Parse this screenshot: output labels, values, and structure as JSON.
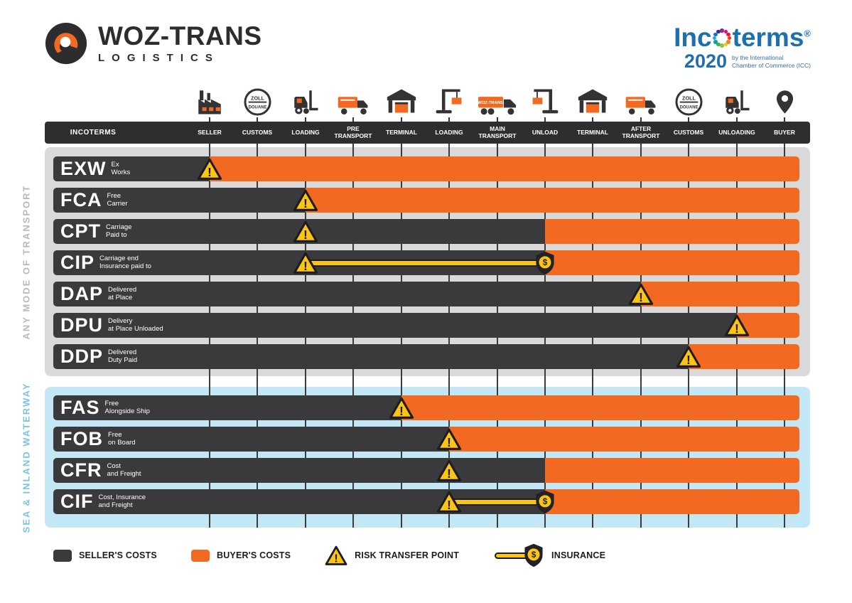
{
  "brand": {
    "name": "WOZ-TRANS",
    "subtitle": "LOGISTICS"
  },
  "incoterms_logo": {
    "title_prefix": "Inc",
    "title_suffix": "terms",
    "registered": "®",
    "year": "2020",
    "caption_line1": "by the International",
    "caption_line2": "Chamber of Commerce (ICC)"
  },
  "icon_texts": {
    "customs_line1": "ZOLL",
    "customs_line2": "DOUANE",
    "truck_brand": "WOZ-TRANS"
  },
  "table": {
    "first_column_header": "INCOTERMS",
    "stages": [
      {
        "label": "SELLER",
        "icon": "factory-icon"
      },
      {
        "label": "CUSTOMS",
        "icon": "customs-stamp-icon"
      },
      {
        "label": "LOADING",
        "icon": "forklift-icon"
      },
      {
        "label": "PRE TRANSPORT",
        "icon": "box-truck-icon"
      },
      {
        "label": "TERMINAL",
        "icon": "warehouse-icon"
      },
      {
        "label": "LOADING",
        "icon": "crane-icon"
      },
      {
        "label": "MAIN TRANSPORT",
        "icon": "cargo-truck-icon"
      },
      {
        "label": "UNLOAD",
        "icon": "crane-icon",
        "mirror": true
      },
      {
        "label": "TERMINAL",
        "icon": "warehouse-icon"
      },
      {
        "label": "AFTER TRANSPORT",
        "icon": "box-truck-icon"
      },
      {
        "label": "CUSTOMS",
        "icon": "customs-stamp-icon"
      },
      {
        "label": "UNLOADING",
        "icon": "forklift-icon"
      },
      {
        "label": "BUYER",
        "icon": "location-pin-icon"
      }
    ]
  },
  "sections": [
    {
      "name": "ANY MODE OF TRANSPORT",
      "rows": [
        {
          "code": "EXW",
          "description": [
            "Ex",
            "Works"
          ],
          "seller_cost_until": "SELLER",
          "seller_until_index": 0,
          "risk_at": "SELLER",
          "risk_index": 0
        },
        {
          "code": "FCA",
          "description": [
            "Free",
            "Carrier"
          ],
          "seller_cost_until": "LOADING",
          "seller_until_index": 2,
          "risk_at": "LOADING",
          "risk_index": 2
        },
        {
          "code": "CPT",
          "description": [
            "Carriage",
            "Paid to"
          ],
          "seller_cost_until": "UNLOAD",
          "seller_until_index": 7,
          "risk_at": "LOADING",
          "risk_index": 2
        },
        {
          "code": "CIP",
          "description": [
            "Carriage end",
            "Insurance paid to"
          ],
          "seller_cost_until": "UNLOAD",
          "seller_until_index": 7,
          "risk_at": "LOADING",
          "risk_index": 2,
          "insurance_from_index": 2,
          "insurance_to_index": 7
        },
        {
          "code": "DAP",
          "description": [
            "Delivered",
            "at Place"
          ],
          "seller_cost_until": "AFTER TRANSPORT",
          "seller_until_index": 9,
          "risk_at": "AFTER TRANSPORT",
          "risk_index": 9
        },
        {
          "code": "DPU",
          "description": [
            "Delivery",
            "at Place Unloaded"
          ],
          "seller_cost_until": "UNLOADING",
          "seller_until_index": 11,
          "risk_at": "UNLOADING",
          "risk_index": 11
        },
        {
          "code": "DDP",
          "description": [
            "Delivered",
            "Duty Paid"
          ],
          "seller_cost_until": "CUSTOMS",
          "seller_until_index": 10,
          "risk_at": "CUSTOMS",
          "risk_index": 10
        }
      ]
    },
    {
      "name": "SEA & INLAND WATERWAY",
      "rows": [
        {
          "code": "FAS",
          "description": [
            "Free",
            "Alongside Ship"
          ],
          "seller_cost_until": "TERMINAL",
          "seller_until_index": 4,
          "risk_at": "TERMINAL",
          "risk_index": 4
        },
        {
          "code": "FOB",
          "description": [
            "Free",
            "on Board"
          ],
          "seller_cost_until": "LOADING",
          "seller_until_index": 5,
          "risk_at": "LOADING",
          "risk_index": 5
        },
        {
          "code": "CFR",
          "description": [
            "Cost",
            "and Freight"
          ],
          "seller_cost_until": "UNLOAD",
          "seller_until_index": 7,
          "risk_at": "LOADING",
          "risk_index": 5
        },
        {
          "code": "CIF",
          "description": [
            "Cost, Insurance",
            "and Freight"
          ],
          "seller_cost_until": "UNLOAD",
          "seller_until_index": 7,
          "risk_at": "LOADING",
          "risk_index": 5,
          "insurance_from_index": 5,
          "insurance_to_index": 7
        }
      ]
    }
  ],
  "legend": [
    {
      "label": "SELLER'S COSTS",
      "type": "seller-swatch"
    },
    {
      "label": "BUYER'S COSTS",
      "type": "buyer-swatch"
    },
    {
      "label": "RISK TRANSFER POINT",
      "type": "risk-triangle"
    },
    {
      "label": "INSURANCE",
      "type": "insurance-glyph"
    }
  ],
  "colors": {
    "seller_dark": "#3a3a3c",
    "buyer_orange": "#f26a21",
    "risk_yellow": "#fdc414",
    "outline_dark": "#1d1d1f",
    "any_mode_bg": "#d9d9d9",
    "sea_bg": "#c4e7f6",
    "incoterms_blue": "#1e6fae",
    "any_mode_label": "#b9b9b9",
    "sea_label": "#7cc3e0",
    "header_bar": "#2e2e30"
  }
}
